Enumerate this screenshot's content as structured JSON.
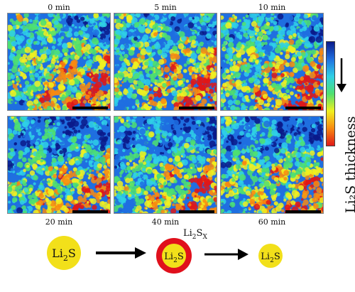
{
  "panels": [
    {
      "time": "0 min"
    },
    {
      "time": "5 min"
    },
    {
      "time": "10 min"
    },
    {
      "time": "20 min"
    },
    {
      "time": "40 min"
    },
    {
      "time": "60 min"
    }
  ],
  "colorbar": {
    "label": "Li₂S thickness",
    "colors": [
      "#0a1a8a",
      "#1f6fe0",
      "#2fd0e6",
      "#4fe070",
      "#f0f020",
      "#f88a10",
      "#e01818"
    ]
  },
  "scheme": {
    "start": {
      "base": "Li",
      "sub": "2",
      "tail": "S"
    },
    "middle": {
      "base": "Li",
      "sub": "2",
      "tail": "S"
    },
    "middle_caption": {
      "base": "Li",
      "sub": "2",
      "tail": "S",
      "sub2": "X"
    },
    "end": {
      "base": "Li",
      "sub": "2",
      "tail": "S"
    },
    "ball_color": "#f2e01a",
    "ring_color": "#e0101c"
  }
}
